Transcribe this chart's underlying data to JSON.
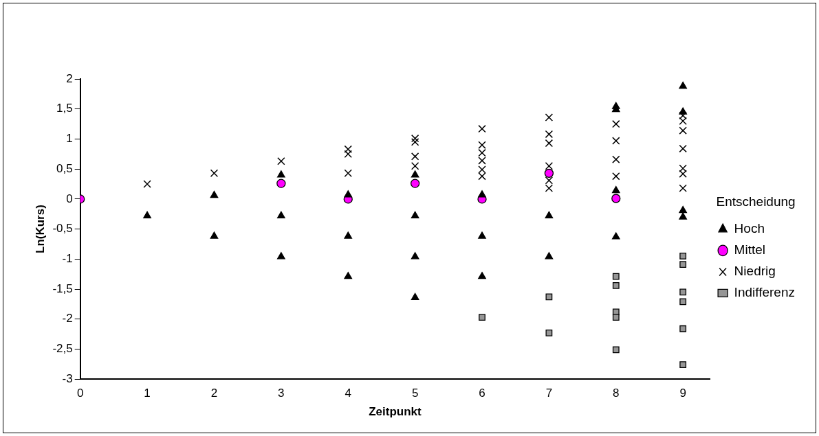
{
  "chart_data": {
    "type": "scatter",
    "xlabel": "Zeitpunkt",
    "ylabel": "Ln(Kurs)",
    "legend_title": "Entscheidung",
    "legend": "right",
    "grid": false,
    "xlim": [
      0,
      9.4
    ],
    "xticks": [
      0,
      1,
      2,
      3,
      4,
      5,
      6,
      7,
      8,
      9
    ],
    "ylim": [
      -3,
      2
    ],
    "yticks": [
      {
        "value": -3,
        "label": "-3"
      },
      {
        "value": -2.5,
        "label": "-2,5"
      },
      {
        "value": -2,
        "label": "-2"
      },
      {
        "value": -1.5,
        "label": "-1,5"
      },
      {
        "value": -1,
        "label": "-1"
      },
      {
        "value": -0.5,
        "label": "-0,5"
      },
      {
        "value": 0,
        "label": "0"
      },
      {
        "value": 0.5,
        "label": "0,5"
      },
      {
        "value": 1,
        "label": "1"
      },
      {
        "value": 1.5,
        "label": "1,5"
      },
      {
        "value": 2,
        "label": "2"
      }
    ],
    "series": [
      {
        "name": "Hoch",
        "color": "#000000",
        "marker": "triangle",
        "x": [
          1,
          2,
          2,
          3,
          3,
          3,
          4,
          4,
          4,
          5,
          5,
          5,
          5,
          6,
          6,
          6,
          7,
          7,
          8,
          8,
          8,
          8,
          9,
          9,
          9,
          9
        ],
        "values": [
          -0.28,
          0.06,
          -0.62,
          0.4,
          -0.28,
          -0.96,
          0.07,
          -0.62,
          -1.29,
          0.4,
          -0.28,
          -0.96,
          -1.64,
          0.07,
          -0.62,
          -1.29,
          -0.28,
          -0.96,
          1.54,
          1.49,
          0.14,
          -0.63,
          1.88,
          1.45,
          -0.19,
          -0.3
        ]
      },
      {
        "name": "Mittel",
        "color": "#ff00ff",
        "marker": "circle",
        "x": [
          0,
          3,
          4,
          5,
          6,
          7,
          8
        ],
        "values": [
          0,
          0.26,
          0,
          0.26,
          0,
          0.43,
          0.01
        ]
      },
      {
        "name": "Niedrig",
        "color": "#000000",
        "marker": "cross",
        "x": [
          1,
          2,
          3,
          4,
          4,
          4,
          5,
          5,
          5,
          5,
          6,
          6,
          6,
          6,
          6,
          6,
          7,
          7,
          7,
          7,
          7,
          7,
          8,
          8,
          8,
          8,
          9,
          9,
          9,
          9,
          9,
          9,
          9
        ],
        "values": [
          0.25,
          0.43,
          0.63,
          0.83,
          0.75,
          0.43,
          1.01,
          0.95,
          0.71,
          0.55,
          1.17,
          0.9,
          0.77,
          0.64,
          0.49,
          0.38,
          1.36,
          1.08,
          0.93,
          0.55,
          0.31,
          0.18,
          1.25,
          0.97,
          0.66,
          0.38,
          1.39,
          1.3,
          1.14,
          0.84,
          0.51,
          0.42,
          0.18
        ]
      },
      {
        "name": "Indifferenz",
        "color": "#969696",
        "marker": "square",
        "x": [
          6,
          7,
          7,
          8,
          8,
          8,
          8,
          8,
          9,
          9,
          9,
          9,
          9,
          9
        ],
        "values": [
          -1.97,
          -1.63,
          -2.23,
          -1.29,
          -1.44,
          -1.88,
          -1.97,
          -2.51,
          -0.95,
          -1.09,
          -1.55,
          -1.71,
          -2.16,
          -2.76
        ]
      }
    ]
  }
}
